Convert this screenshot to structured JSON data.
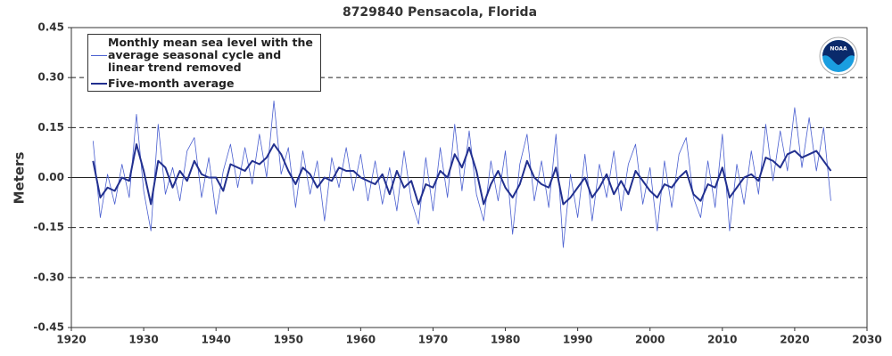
{
  "chart_data": {
    "type": "line",
    "title": "8729840 Pensacola, Florida",
    "y_label": "Meters",
    "x": [
      1923,
      1924,
      1925,
      1926,
      1927,
      1928,
      1929,
      1930,
      1931,
      1932,
      1933,
      1934,
      1935,
      1936,
      1937,
      1938,
      1939,
      1940,
      1941,
      1942,
      1943,
      1944,
      1945,
      1946,
      1947,
      1948,
      1949,
      1950,
      1951,
      1952,
      1953,
      1954,
      1955,
      1956,
      1957,
      1958,
      1959,
      1960,
      1961,
      1962,
      1963,
      1964,
      1965,
      1966,
      1967,
      1968,
      1969,
      1970,
      1971,
      1972,
      1973,
      1974,
      1975,
      1976,
      1977,
      1978,
      1979,
      1980,
      1981,
      1982,
      1983,
      1984,
      1985,
      1986,
      1987,
      1988,
      1989,
      1990,
      1991,
      1992,
      1993,
      1994,
      1995,
      1996,
      1997,
      1998,
      1999,
      2000,
      2001,
      2002,
      2003,
      2004,
      2005,
      2006,
      2007,
      2008,
      2009,
      2010,
      2011,
      2012,
      2013,
      2014,
      2015,
      2016,
      2017,
      2018,
      2019,
      2020,
      2021,
      2022,
      2023,
      2024,
      2025
    ],
    "series": [
      {
        "name": "Monthly mean sea level with the average seasonal cycle and linear trend removed",
        "color": "#4a5fd0",
        "width": 0.8,
        "values": [
          0.11,
          -0.12,
          0.01,
          -0.08,
          0.04,
          -0.06,
          0.19,
          -0.04,
          -0.16,
          0.16,
          -0.05,
          0.03,
          -0.07,
          0.08,
          0.12,
          -0.06,
          0.06,
          -0.11,
          0.02,
          0.1,
          -0.03,
          0.09,
          -0.02,
          0.13,
          0.0,
          0.23,
          0.01,
          0.09,
          -0.09,
          0.08,
          -0.05,
          0.05,
          -0.13,
          0.06,
          -0.03,
          0.09,
          -0.04,
          0.07,
          -0.07,
          0.05,
          -0.08,
          0.03,
          -0.1,
          0.08,
          -0.07,
          -0.14,
          0.06,
          -0.1,
          0.09,
          -0.06,
          0.16,
          -0.04,
          0.14,
          -0.05,
          -0.13,
          0.05,
          -0.07,
          0.08,
          -0.17,
          0.04,
          0.13,
          -0.07,
          0.05,
          -0.09,
          0.13,
          -0.21,
          0.01,
          -0.12,
          0.07,
          -0.13,
          0.04,
          -0.06,
          0.08,
          -0.1,
          0.04,
          0.1,
          -0.08,
          0.03,
          -0.16,
          0.05,
          -0.09,
          0.07,
          0.12,
          -0.06,
          -0.12,
          0.05,
          -0.09,
          0.13,
          -0.16,
          0.04,
          -0.08,
          0.08,
          -0.05,
          0.16,
          -0.01,
          0.14,
          0.02,
          0.21,
          0.03,
          0.18,
          0.02,
          0.15,
          -0.07
        ]
      },
      {
        "name": "Five-month average",
        "color": "#22308f",
        "width": 2,
        "values": [
          0.05,
          -0.06,
          -0.03,
          -0.04,
          0.0,
          -0.01,
          0.1,
          0.02,
          -0.08,
          0.05,
          0.03,
          -0.03,
          0.02,
          -0.01,
          0.05,
          0.01,
          0.0,
          0.0,
          -0.04,
          0.04,
          0.03,
          0.02,
          0.05,
          0.04,
          0.06,
          0.1,
          0.07,
          0.02,
          -0.02,
          0.03,
          0.01,
          -0.03,
          0.0,
          -0.01,
          0.03,
          0.02,
          0.02,
          0.0,
          -0.01,
          -0.02,
          0.01,
          -0.05,
          0.02,
          -0.03,
          -0.01,
          -0.08,
          -0.02,
          -0.03,
          0.02,
          0.0,
          0.07,
          0.03,
          0.09,
          0.02,
          -0.08,
          -0.02,
          0.02,
          -0.03,
          -0.06,
          -0.02,
          0.05,
          0.0,
          -0.02,
          -0.03,
          0.03,
          -0.08,
          -0.06,
          -0.03,
          0.0,
          -0.06,
          -0.03,
          0.01,
          -0.05,
          -0.01,
          -0.05,
          0.02,
          -0.01,
          -0.04,
          -0.06,
          -0.02,
          -0.03,
          0.0,
          0.02,
          -0.05,
          -0.07,
          -0.02,
          -0.03,
          0.03,
          -0.06,
          -0.03,
          0.0,
          0.01,
          -0.01,
          0.06,
          0.05,
          0.03,
          0.07,
          0.08,
          0.06,
          0.07,
          0.08,
          0.05,
          0.02
        ]
      }
    ],
    "xlim": [
      1920,
      2030
    ],
    "xticks": [
      1920,
      1930,
      1940,
      1950,
      1960,
      1970,
      1980,
      1990,
      2000,
      2010,
      2020,
      2030
    ],
    "ylim": [
      -0.45,
      0.45
    ],
    "yticks": [
      -0.45,
      {
        "value": -0.3,
        "label": "-0.30"
      },
      -0.15,
      {
        "value": 0,
        "label": "0.00"
      },
      0.15,
      {
        "value": 0.3,
        "label": "0.30"
      },
      0.45
    ],
    "grid": true,
    "legend": "upper left"
  }
}
